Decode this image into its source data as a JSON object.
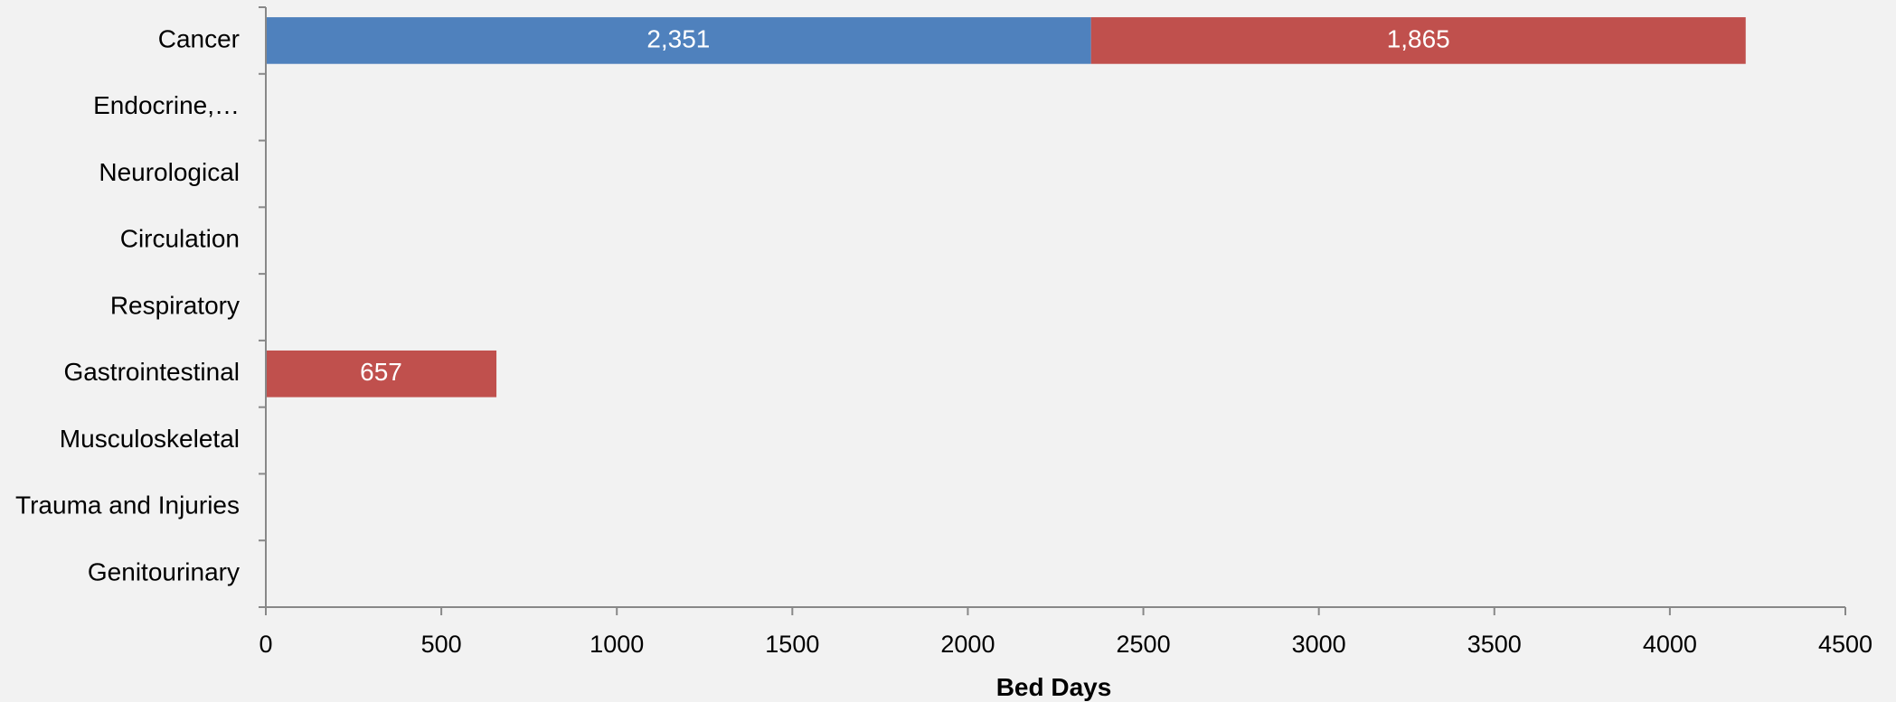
{
  "chart_data": {
    "type": "bar",
    "orientation": "horizontal",
    "stacked": true,
    "categories": [
      "Cancer",
      "Endocrine,…",
      "Neurological",
      "Circulation",
      "Respiratory",
      "Gastrointestinal",
      "Musculoskeletal",
      "Trauma and Injuries",
      "Genitourinary"
    ],
    "series": [
      {
        "color": "#4f81bd",
        "values": [
          2351,
          0,
          0,
          0,
          0,
          0,
          0,
          0,
          0
        ]
      },
      {
        "color": "#c0504d",
        "values": [
          1865,
          0,
          0,
          0,
          0,
          657,
          0,
          0,
          0
        ]
      }
    ],
    "data_labels": [
      {
        "category": "Cancer",
        "series": 0,
        "text": "2,351"
      },
      {
        "category": "Cancer",
        "series": 1,
        "text": "1,865"
      },
      {
        "category": "Gastrointestinal",
        "series": 1,
        "text": "657"
      }
    ],
    "xlabel": "Bed Days",
    "xlim": [
      0,
      4500
    ],
    "xticks": [
      0,
      500,
      1000,
      1500,
      2000,
      2500,
      3000,
      3500,
      4000,
      4500
    ],
    "grid": false,
    "legend": "none"
  }
}
